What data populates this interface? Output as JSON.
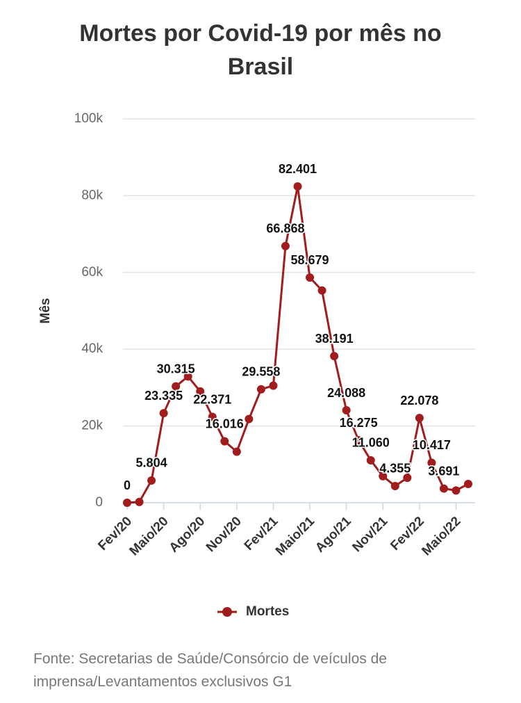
{
  "chart_data": {
    "type": "line",
    "title": "Mortes por Covid-19 por mês no Brasil",
    "ylabel": "Mês",
    "source": "Fonte: Secretarias de Saúde/Consórcio de veículos de imprensa/Levantamentos exclusivos G1",
    "categories": [
      "Fev/20",
      null,
      null,
      "Maio/20",
      null,
      null,
      "Ago/20",
      null,
      null,
      "Nov/20",
      null,
      null,
      "Fev/21",
      null,
      null,
      "Maio/21",
      null,
      null,
      "Ago/21",
      null,
      null,
      "Nov/21",
      null,
      null,
      "Fev/22",
      null,
      null,
      "Maio/22",
      null
    ],
    "series": [
      {
        "name": "Mortes",
        "color": "#a11d1d",
        "values": [
          0,
          200,
          5804,
          23335,
          30315,
          32900,
          29000,
          22371,
          16016,
          13300,
          21800,
          29558,
          30500,
          66868,
          82401,
          58679,
          55300,
          38191,
          24088,
          16275,
          11060,
          6900,
          4355,
          6500,
          22078,
          10417,
          3691,
          3200,
          4900
        ],
        "value_labels": [
          "0",
          null,
          "5.804",
          "23.335",
          "30.315",
          null,
          null,
          "22.371",
          "16.016",
          null,
          null,
          "29.558",
          null,
          "66.868",
          "82.401",
          "58.679",
          null,
          "38.191",
          "24.088",
          "16.275",
          "11.060",
          null,
          "4.355",
          null,
          "22.078",
          "10.417",
          "3.691",
          null,
          null
        ]
      }
    ],
    "ylim": [
      0,
      100000
    ],
    "yticks": [
      0,
      {
        "value": 20000,
        "label": "20k"
      },
      {
        "value": 40000,
        "label": "40k"
      },
      {
        "value": 60000,
        "label": "60k"
      },
      {
        "value": 80000,
        "label": "80k"
      },
      {
        "value": 100000,
        "label": "100k"
      }
    ],
    "grid": true
  }
}
